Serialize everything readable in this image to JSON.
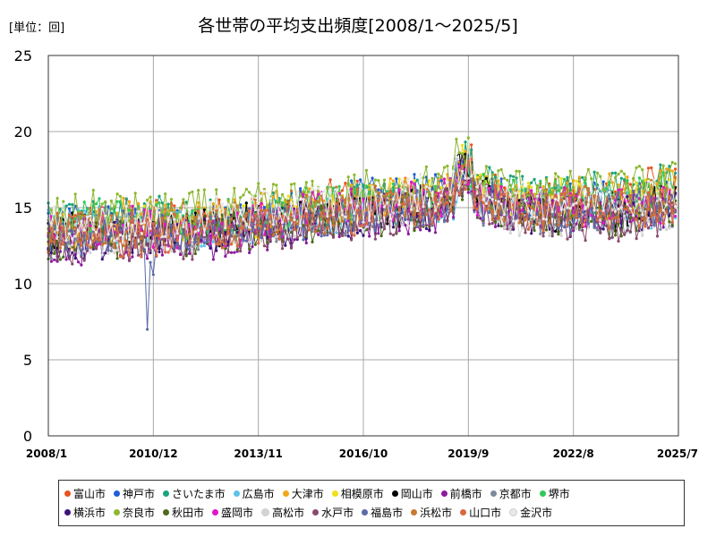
{
  "unit_label": "[単位：回]",
  "chart_data": {
    "type": "line",
    "title": "各世帯の平均支出頻度[2008/1～2025/5]",
    "xlabel": "",
    "ylabel": "",
    "ylim": [
      0,
      25
    ],
    "yticks": [
      0,
      5,
      10,
      15,
      20,
      25
    ],
    "x_tick_labels": [
      "2008/1",
      "2010/12",
      "2013/11",
      "2016/10",
      "2019/9",
      "2022/8",
      "2025/7"
    ],
    "grid": true,
    "legend_position": "bottom",
    "series": [
      {
        "name": "富山市",
        "color": "#e8531f",
        "values": [
          13.2,
          13.6,
          13.9,
          14.5,
          14.3,
          14.2,
          14.6,
          14.3,
          14.9,
          14.6,
          14.9,
          15.2,
          15.7,
          15.6,
          15.4,
          15.7,
          15.9,
          16.1,
          16.3,
          16.0,
          15.4,
          15.6,
          15.5,
          15.8,
          16.3,
          16.5,
          16.4
        ]
      },
      {
        "name": "神戸市",
        "color": "#1f5fd6",
        "values": [
          13.4,
          13.8,
          14.0,
          14.0,
          13.8,
          13.9,
          14.1,
          14.2,
          14.4,
          14.3,
          14.8,
          15.3,
          15.4,
          15.6,
          15.8,
          15.9,
          15.9,
          16.4,
          16.2,
          15.7,
          15.5,
          15.4,
          15.6,
          15.5,
          15.5,
          15.7,
          16.0
        ]
      },
      {
        "name": "さいたま市",
        "color": "#19a37e",
        "values": [
          14.1,
          14.0,
          14.6,
          14.3,
          14.7,
          14.6,
          14.0,
          14.5,
          14.3,
          14.9,
          14.4,
          14.9,
          15.2,
          15.7,
          15.4,
          15.4,
          15.8,
          16.4,
          16.6,
          15.8,
          15.9,
          15.7,
          15.9,
          16.2,
          16.2,
          16.6,
          16.9
        ]
      },
      {
        "name": "広島市",
        "color": "#5cc3e8",
        "values": [
          13.7,
          13.7,
          13.9,
          13.6,
          13.3,
          13.9,
          13.6,
          14.0,
          13.8,
          14.0,
          14.1,
          14.5,
          14.5,
          14.8,
          15.0,
          15.2,
          15.3,
          15.6,
          15.7,
          15.3,
          15.1,
          15.2,
          15.3,
          15.1,
          14.8,
          14.9,
          15.2
        ]
      },
      {
        "name": "大津市",
        "color": "#f0a818",
        "values": [
          13.3,
          13.6,
          14.1,
          14.7,
          14.1,
          14.1,
          14.2,
          14.1,
          14.4,
          14.8,
          15.1,
          15.0,
          15.3,
          15.5,
          15.8,
          16.0,
          15.7,
          16.3,
          16.1,
          15.4,
          15.3,
          15.6,
          15.9,
          16.0,
          16.1,
          16.2,
          16.4
        ]
      },
      {
        "name": "相模原市",
        "color": "#f0e018",
        "values": [
          13.2,
          13.4,
          13.5,
          13.9,
          13.9,
          13.3,
          13.5,
          14.0,
          13.9,
          14.3,
          14.7,
          14.9,
          14.7,
          15.3,
          15.6,
          15.7,
          15.6,
          16.2,
          16.3,
          15.4,
          15.6,
          15.8,
          15.6,
          15.3,
          15.8,
          15.5,
          15.8
        ]
      },
      {
        "name": "岡山市",
        "color": "#000000",
        "values": [
          13.1,
          13.4,
          13.2,
          13.8,
          13.2,
          13.4,
          13.8,
          13.6,
          13.9,
          14.4,
          14.5,
          14.5,
          14.8,
          14.9,
          14.7,
          15.2,
          15.4,
          16.0,
          15.7,
          15.3,
          14.8,
          14.7,
          14.8,
          14.6,
          14.9,
          15.1,
          15.5
        ]
      },
      {
        "name": "前橋市",
        "color": "#8b1a9c",
        "values": [
          12.5,
          12.3,
          12.9,
          12.8,
          12.6,
          13.0,
          13.2,
          12.8,
          13.1,
          13.5,
          13.4,
          13.6,
          14.1,
          14.3,
          14.5,
          14.4,
          14.5,
          15.5,
          15.3,
          14.8,
          14.6,
          14.3,
          14.6,
          14.5,
          14.6,
          14.8,
          15.0
        ]
      },
      {
        "name": "京都市",
        "color": "#7a8a9a",
        "values": [
          12.9,
          13.0,
          13.5,
          13.3,
          13.1,
          13.4,
          13.4,
          13.9,
          13.6,
          13.8,
          14.3,
          14.2,
          14.2,
          14.8,
          14.5,
          14.7,
          15.2,
          15.5,
          15.1,
          14.7,
          14.4,
          14.3,
          14.4,
          14.1,
          14.5,
          14.5,
          14.9
        ]
      },
      {
        "name": "堺市",
        "color": "#30c858",
        "values": [
          13.9,
          14.3,
          14.4,
          14.4,
          14.3,
          14.4,
          14.1,
          14.6,
          14.4,
          14.7,
          14.7,
          15.2,
          15.5,
          15.2,
          15.1,
          15.7,
          15.7,
          16.4,
          16.1,
          15.5,
          15.6,
          15.6,
          15.6,
          15.6,
          15.6,
          15.9,
          16.2
        ]
      },
      {
        "name": "横浜市",
        "color": "#3c1478",
        "values": [
          12.7,
          12.7,
          12.6,
          13.1,
          13.0,
          13.4,
          13.1,
          13.1,
          13.6,
          13.4,
          13.8,
          14.2,
          14.3,
          14.2,
          14.7,
          14.9,
          14.6,
          15.6,
          15.5,
          14.6,
          14.6,
          14.5,
          14.3,
          14.6,
          14.5,
          14.7,
          14.9
        ]
      },
      {
        "name": "奈良市",
        "color": "#8cb830",
        "values": [
          14.3,
          14.6,
          14.9,
          14.9,
          14.6,
          14.7,
          14.8,
          15.2,
          14.9,
          15.5,
          15.6,
          15.5,
          15.7,
          16.3,
          15.9,
          16.4,
          16.6,
          16.8,
          16.9,
          16.5,
          16.2,
          16.0,
          16.3,
          16.2,
          16.3,
          16.7,
          16.8
        ]
      },
      {
        "name": "秋田市",
        "color": "#4e6a18",
        "values": [
          12.6,
          12.8,
          13.0,
          12.9,
          12.8,
          13.3,
          13.0,
          13.4,
          13.4,
          13.5,
          13.7,
          14.0,
          14.3,
          14.6,
          14.4,
          14.7,
          14.7,
          15.4,
          15.2,
          14.5,
          14.1,
          14.3,
          14.6,
          14.2,
          14.1,
          14.5,
          14.8
        ]
      },
      {
        "name": "盛岡市",
        "color": "#e014c8",
        "values": [
          13.4,
          13.4,
          13.6,
          14.1,
          13.7,
          13.6,
          13.7,
          13.8,
          13.7,
          14.1,
          14.2,
          14.9,
          15.0,
          14.9,
          15.1,
          15.7,
          15.4,
          16.0,
          15.7,
          15.1,
          14.9,
          15.2,
          15.1,
          14.8,
          15.2,
          15.1,
          15.4
        ]
      },
      {
        "name": "高松市",
        "color": "#d4d4d4",
        "values": [
          13.0,
          13.2,
          13.2,
          13.2,
          13.2,
          13.3,
          13.3,
          13.6,
          13.6,
          13.6,
          14.2,
          14.1,
          14.2,
          14.6,
          14.6,
          14.7,
          15.1,
          15.8,
          15.4,
          14.5,
          14.4,
          14.3,
          14.5,
          14.4,
          14.0,
          14.6,
          14.6
        ]
      },
      {
        "name": "水戸市",
        "color": "#8a4a70",
        "values": [
          12.5,
          12.4,
          12.9,
          12.8,
          12.6,
          13.0,
          12.7,
          13.4,
          13.3,
          13.4,
          13.4,
          13.8,
          14.0,
          14.1,
          14.2,
          14.8,
          14.8,
          15.3,
          14.9,
          14.6,
          14.1,
          14.2,
          14.0,
          13.9,
          14.2,
          14.2,
          14.5
        ]
      },
      {
        "name": "福島市",
        "color": "#5b6aa8",
        "values": [
          13.0,
          13.2,
          13.1,
          13.5,
          13.4,
          13.5,
          13.4,
          13.3,
          13.7,
          14.1,
          13.8,
          14.2,
          14.5,
          14.5,
          14.9,
          15.0,
          14.9,
          15.8,
          15.5,
          14.8,
          14.4,
          14.5,
          14.6,
          14.8,
          14.9,
          14.8,
          15.0
        ]
      },
      {
        "name": "浜松市",
        "color": "#c87830",
        "values": [
          13.2,
          13.8,
          13.8,
          13.6,
          13.8,
          14.1,
          13.9,
          13.7,
          14.5,
          14.3,
          14.5,
          14.8,
          15.2,
          15.2,
          15.4,
          15.5,
          15.8,
          16.1,
          16.0,
          15.2,
          14.9,
          15.0,
          15.3,
          15.4,
          15.5,
          15.5,
          16.0
        ]
      },
      {
        "name": "山口市",
        "color": "#d86840",
        "values": [
          12.8,
          13.3,
          13.3,
          13.0,
          13.0,
          13.3,
          13.5,
          13.6,
          13.4,
          14.1,
          14.0,
          14.1,
          14.6,
          14.4,
          14.8,
          15.2,
          15.2,
          15.8,
          15.6,
          14.9,
          14.8,
          14.7,
          15.1,
          14.8,
          14.9,
          15.0,
          15.3
        ]
      },
      {
        "name": "金沢市",
        "color": "#e8e8e8",
        "values": [
          13.8,
          14.0,
          14.0,
          13.9,
          14.0,
          14.1,
          14.1,
          14.6,
          14.6,
          14.8,
          14.9,
          15.3,
          15.4,
          15.2,
          15.4,
          16.0,
          15.9,
          16.2,
          16.2,
          15.4,
          15.4,
          15.5,
          15.3,
          15.8,
          15.7,
          15.9,
          16.2
        ]
      }
    ],
    "annotations": [
      {
        "series": "福島市",
        "x": "2010/10",
        "y": 7.0
      }
    ]
  }
}
